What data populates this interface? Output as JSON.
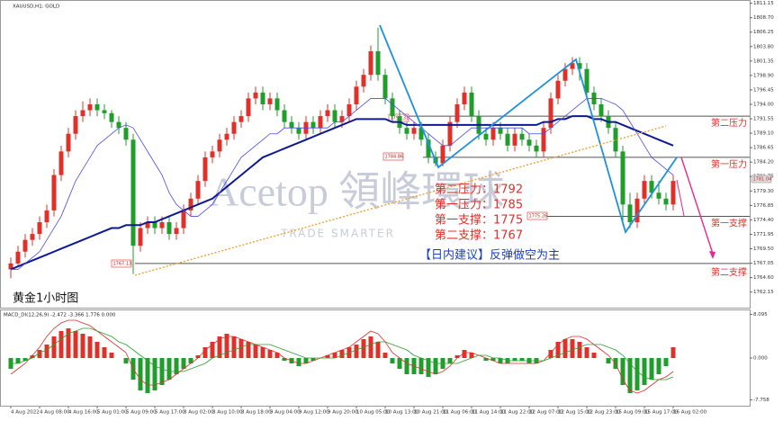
{
  "chart_data": {
    "type": "candlestick",
    "title": "XAUUSD,H1: GOLD",
    "subtitle": "黄金1小时图",
    "up_color": "#e0302a",
    "down_color": "#1f9e2c",
    "categories": [
      "4 Aug 2022",
      null,
      null,
      null,
      "4 Aug 08:00",
      null,
      null,
      null,
      "4 Aug 16:00",
      null,
      null,
      null,
      "5 Aug 01:00",
      null,
      null,
      null,
      "5 Aug 09:00",
      null,
      null,
      null,
      "5 Aug 17:00",
      null,
      null,
      null,
      "8 Aug 02:00",
      null,
      null,
      null,
      "8 Aug 10:00",
      null,
      null,
      null,
      "8 Aug 18:00",
      null,
      null,
      null,
      "9 Aug 04:00",
      null,
      null,
      null,
      "9 Aug 12:00",
      null,
      null,
      null,
      "9 Aug 20:00",
      null,
      null,
      null,
      "10 Aug 05:00",
      null,
      null,
      null,
      "10 Aug 13:00",
      null,
      null,
      null,
      "10 Aug 21:00",
      null,
      null,
      null,
      "11 Aug 06:00",
      null,
      null,
      null,
      "11 Aug 14:00",
      null,
      null,
      null,
      "11 Aug 22:00",
      null,
      null,
      null,
      "12 Aug 07:00",
      null,
      null,
      null,
      "12 Aug 15:00",
      null,
      null,
      null,
      "12 Aug 23:00",
      null,
      null,
      null,
      "15 Aug 09:00",
      null,
      null,
      null,
      "15 Aug 17:00",
      null,
      null,
      null,
      "16 Aug 02:00"
    ],
    "ohlc": [
      [
        1766,
        1768,
        1764.5,
        1767
      ],
      [
        1767,
        1770,
        1766.5,
        1769
      ],
      [
        1769,
        1772,
        1768,
        1771
      ],
      [
        1771,
        1773,
        1770,
        1772
      ],
      [
        1772,
        1775,
        1771,
        1774
      ],
      [
        1774,
        1777,
        1773,
        1776
      ],
      [
        1776,
        1783,
        1775,
        1782
      ],
      [
        1782,
        1787,
        1781,
        1786
      ],
      [
        1786,
        1790,
        1785,
        1789
      ],
      [
        1789,
        1793,
        1788,
        1792
      ],
      [
        1792,
        1794.5,
        1791,
        1793
      ],
      [
        1793,
        1795,
        1792,
        1794
      ],
      [
        1794,
        1795,
        1792,
        1793
      ],
      [
        1793,
        1794,
        1791.5,
        1792.5
      ],
      [
        1792.5,
        1793,
        1790,
        1791
      ],
      [
        1791,
        1792,
        1789,
        1790
      ],
      [
        1790,
        1791,
        1787,
        1788
      ],
      [
        1788,
        1789,
        1765.2,
        1770
      ],
      [
        1770,
        1774,
        1769,
        1773
      ],
      [
        1773,
        1775,
        1772,
        1774
      ],
      [
        1774,
        1775,
        1772,
        1773
      ],
      [
        1773,
        1775,
        1772,
        1774
      ],
      [
        1774,
        1775,
        1771,
        1772
      ],
      [
        1772,
        1774,
        1771,
        1773
      ],
      [
        1773,
        1777,
        1772,
        1776
      ],
      [
        1776,
        1779,
        1775,
        1778
      ],
      [
        1778,
        1782,
        1777,
        1781
      ],
      [
        1781,
        1786,
        1780,
        1785
      ],
      [
        1785,
        1787,
        1784,
        1786
      ],
      [
        1786,
        1789,
        1785,
        1788
      ],
      [
        1788,
        1790,
        1787,
        1789
      ],
      [
        1789,
        1792,
        1788,
        1791
      ],
      [
        1791,
        1793,
        1790,
        1792
      ],
      [
        1792,
        1796,
        1791,
        1795
      ],
      [
        1795,
        1797,
        1794,
        1796
      ],
      [
        1796,
        1797,
        1793,
        1794
      ],
      [
        1794,
        1796,
        1793,
        1795
      ],
      [
        1795,
        1796,
        1792,
        1793
      ],
      [
        1793,
        1794,
        1790,
        1791
      ],
      [
        1791,
        1792,
        1789,
        1790
      ],
      [
        1790,
        1791,
        1788,
        1789
      ],
      [
        1789,
        1792,
        1788,
        1791
      ],
      [
        1791,
        1792,
        1789,
        1790
      ],
      [
        1790,
        1793,
        1789,
        1792
      ],
      [
        1792,
        1794,
        1791,
        1793
      ],
      [
        1793,
        1794,
        1790,
        1791
      ],
      [
        1791,
        1793,
        1790,
        1792
      ],
      [
        1792,
        1795,
        1791,
        1794
      ],
      [
        1794,
        1798,
        1793,
        1797
      ],
      [
        1797,
        1800,
        1796,
        1799
      ],
      [
        1799,
        1804,
        1798,
        1803
      ],
      [
        1803,
        1807,
        1798,
        1799
      ],
      [
        1799,
        1800,
        1794,
        1795
      ],
      [
        1795,
        1796,
        1791,
        1792
      ],
      [
        1792,
        1793,
        1789,
        1790
      ],
      [
        1790,
        1791,
        1788,
        1789
      ],
      [
        1789,
        1791,
        1788,
        1790
      ],
      [
        1790,
        1791,
        1787,
        1788
      ],
      [
        1788,
        1789,
        1784,
        1785
      ],
      [
        1785,
        1786,
        1783.5,
        1784
      ],
      [
        1784,
        1788,
        1783.5,
        1787
      ],
      [
        1787,
        1792,
        1786,
        1791
      ],
      [
        1791,
        1795,
        1790,
        1794
      ],
      [
        1794,
        1797,
        1793,
        1796
      ],
      [
        1796,
        1797,
        1791,
        1792
      ],
      [
        1792,
        1793,
        1788,
        1789
      ],
      [
        1789,
        1790,
        1787,
        1788
      ],
      [
        1788,
        1791,
        1787,
        1790
      ],
      [
        1790,
        1791,
        1788,
        1789
      ],
      [
        1789,
        1790,
        1786,
        1787
      ],
      [
        1787,
        1790,
        1786,
        1789
      ],
      [
        1789,
        1790,
        1787,
        1788
      ],
      [
        1788,
        1789,
        1786,
        1787
      ],
      [
        1787,
        1788,
        1785,
        1786
      ],
      [
        1786,
        1791,
        1785,
        1790
      ],
      [
        1790,
        1796,
        1789,
        1795
      ],
      [
        1795,
        1799,
        1794,
        1798
      ],
      [
        1798,
        1801,
        1797,
        1800
      ],
      [
        1800,
        1802,
        1799,
        1801
      ],
      [
        1801,
        1802,
        1798,
        1800
      ],
      [
        1800,
        1801,
        1795,
        1796
      ],
      [
        1796,
        1797,
        1793,
        1794
      ],
      [
        1794,
        1795,
        1791,
        1792
      ],
      [
        1792,
        1793,
        1789,
        1790
      ],
      [
        1790,
        1791,
        1785,
        1786
      ],
      [
        1786,
        1787,
        1773.5,
        1777
      ],
      [
        1777,
        1779,
        1773,
        1774
      ],
      [
        1774,
        1779,
        1773,
        1778
      ],
      [
        1778,
        1782,
        1777,
        1781
      ],
      [
        1781,
        1782,
        1778,
        1779
      ],
      [
        1779,
        1781,
        1777,
        1778
      ],
      [
        1778,
        1779,
        1776,
        1777
      ],
      [
        1777,
        1782,
        1776,
        1781
      ]
    ],
    "series": [
      {
        "color": "#0d1a8f",
        "width": 2,
        "values": [
          1766,
          1766.5,
          1767,
          1767.5,
          1768,
          1768.5,
          1769,
          1769.5,
          1770,
          1770.5,
          1771,
          1771.5,
          1772,
          1772.5,
          1773,
          1773,
          1773.5,
          1773.5,
          1773.5,
          1774,
          1774,
          1774.5,
          1775,
          1775.5,
          1776,
          1776.5,
          1777,
          1777.5,
          1778,
          1779,
          1780,
          1781,
          1782,
          1783,
          1784,
          1785,
          1785.5,
          1786,
          1786.5,
          1787,
          1787.5,
          1788,
          1788.5,
          1789,
          1789.5,
          1790,
          1790.5,
          1791,
          1791.5,
          1791.5,
          1791.5,
          1791.5,
          1791.5,
          1791,
          1791,
          1790.5,
          1790.5,
          1790.5,
          1790.5,
          1790.5,
          1790.5,
          1790.5,
          1790.5,
          1790.5,
          1790.5,
          1790.5,
          1790.5,
          1790.5,
          1790.5,
          1790.5,
          1790.5,
          1790.5,
          1790.5,
          1790.5,
          1791,
          1791,
          1791.5,
          1791.5,
          1792,
          1792,
          1792,
          1791.5,
          1791.5,
          1791,
          1791,
          1790.5,
          1790,
          1789.5,
          1789,
          1788.5,
          1788,
          1787.5,
          1787
        ]
      },
      {
        "color": "#4a4ae6",
        "width": 0.8,
        "values": [
          1766,
          1766,
          1767,
          1768,
          1769,
          1771,
          1773,
          1775,
          1778,
          1781,
          1783,
          1785,
          1787,
          1788,
          1789,
          1790,
          1790.5,
          1790,
          1788,
          1786,
          1784,
          1782,
          1779,
          1777,
          1776,
          1775,
          1775,
          1776,
          1777,
          1779,
          1781,
          1783,
          1785,
          1786,
          1787,
          1788,
          1789,
          1789,
          1790,
          1790,
          1790,
          1790,
          1790,
          1790,
          1790,
          1791,
          1791,
          1792,
          1793,
          1794,
          1795,
          1795,
          1795,
          1794,
          1793,
          1792,
          1791,
          1790,
          1789,
          1788,
          1787,
          1787,
          1788,
          1789,
          1790,
          1790,
          1790,
          1790,
          1790,
          1790,
          1790,
          1790,
          1789,
          1789,
          1789,
          1790,
          1791,
          1792,
          1793,
          1794,
          1795,
          1795,
          1795,
          1794.5,
          1794,
          1793,
          1791,
          1789,
          1787,
          1785,
          1784,
          1783,
          1782
        ]
      }
    ],
    "ylim": [
      1759.5,
      1811.7
    ],
    "yticks": [
      1762.15,
      {
        "value": 1764.6,
        "label": "1764.60"
      },
      1767.05,
      {
        "value": 1769.5,
        "label": "1769.50"
      },
      1771.95,
      {
        "value": 1774.4,
        "label": "1774.40"
      },
      1776.85,
      {
        "value": 1779.3,
        "label": "1779.30"
      },
      1781.75,
      {
        "value": 1784.2,
        "label": "1784.20"
      },
      1786.65,
      {
        "value": 1789.1,
        "label": "1789.10"
      },
      1791.55,
      {
        "value": 1794,
        "label": "1794.00"
      },
      1796.45,
      {
        "value": 1798.9,
        "label": "1798.90"
      },
      1801.35,
      {
        "value": 1803.8,
        "label": "1803.80"
      },
      1806.25,
      {
        "value": 1808.7,
        "label": "1808.70"
      },
      1811.15
    ],
    "levels": [
      {
        "label": "第二压力",
        "value": 1792
      },
      {
        "label": "第一压力",
        "value": 1785
      },
      {
        "label": "第一支撑",
        "value": 1775
      },
      {
        "label": "第二支撑",
        "value": 1767
      }
    ],
    "annotations": [
      "1791.31",
      "1784.86",
      "1775.26",
      "1767.13",
      "1781.04"
    ],
    "notes": [
      "第二压力：1792",
      "第一压力：1785",
      "第一支撑：1775",
      "第二支撑：1767"
    ],
    "advice": "【日内建议】反弹做空为主",
    "watermark": [
      "Acetop 領峰環球",
      "TRADE SMARTER"
    ],
    "indicator": {
      "title": "MACD_DI(12,26,9) -2.472 -3.366 1.776 0.000",
      "ylim": [
        -9,
        9
      ],
      "yticks": [
        8.095,
        {
          "value": 0,
          "label": "0.000"
        },
        -7.758
      ],
      "histogram": [
        -2,
        -1,
        -0.5,
        0.5,
        1.5,
        2.5,
        4,
        5,
        5.5,
        5,
        4.5,
        4,
        3,
        2,
        1,
        0,
        -1,
        -4,
        -6,
        -6.5,
        -6,
        -5,
        -4,
        -3,
        -2,
        -1,
        0.5,
        2,
        3,
        4,
        4.5,
        4,
        3.5,
        3,
        2.5,
        2,
        1.5,
        1,
        -0.5,
        -1,
        -1.5,
        -1,
        -0.5,
        0,
        0.5,
        1,
        1.5,
        2,
        2.5,
        3.5,
        4,
        3,
        1,
        -1,
        -2,
        -3,
        -3,
        -3,
        -3.5,
        -3,
        -2,
        -1,
        0.5,
        1.5,
        1,
        0,
        -0.5,
        -0.5,
        -1,
        -1,
        -0.5,
        -0.5,
        -1,
        -1,
        0,
        1.5,
        3,
        3.5,
        3.5,
        3,
        2,
        1,
        0,
        -1,
        -2,
        -5,
        -6.5,
        -6,
        -5,
        -4,
        -3,
        -1.5,
        2
      ],
      "lines": [
        {
          "color": "#e0302a",
          "values": [
            -3,
            -2,
            -1,
            0.5,
            2,
            4,
            5.5,
            6.5,
            7,
            7,
            6.5,
            6,
            5,
            4,
            3,
            2,
            1,
            -2,
            -4,
            -5,
            -5,
            -4.5,
            -4,
            -3,
            -2,
            -1,
            0,
            1.5,
            2.5,
            3.5,
            4,
            4,
            3.5,
            3,
            2.5,
            2,
            1.5,
            1,
            0,
            -0.5,
            -1,
            -1,
            -0.5,
            0,
            0.5,
            1,
            1.5,
            2,
            3,
            4,
            5,
            4.5,
            3,
            1,
            0,
            -1,
            -1.5,
            -2,
            -2.5,
            -3,
            -2.5,
            -1.5,
            0,
            1,
            1,
            0.5,
            0,
            -0.5,
            -1,
            -1,
            -1,
            -1,
            -1,
            -1,
            -0.5,
            1,
            2.5,
            3.5,
            4,
            4,
            3.5,
            2.5,
            1.5,
            0.5,
            -1,
            -4,
            -6,
            -6.5,
            -6,
            -5,
            -4,
            -3.5,
            -2.5
          ]
        },
        {
          "color": "#2aa02a",
          "values": [
            -1,
            -1,
            -0.5,
            0,
            1,
            1.5,
            2.5,
            3.5,
            4.5,
            5,
            5.5,
            5.5,
            5,
            4.5,
            4,
            3,
            2.5,
            1.5,
            0.5,
            -0.5,
            -1.5,
            -2,
            -2.5,
            -2.5,
            -2.5,
            -2,
            -1.5,
            -1,
            0,
            0.5,
            1,
            1.5,
            2,
            2.5,
            2.5,
            2.5,
            2.5,
            2,
            1.5,
            1,
            0.5,
            0,
            0,
            0,
            0,
            0,
            0.5,
            1,
            1.5,
            2,
            2.5,
            3,
            3,
            2.5,
            2,
            1.5,
            0.5,
            0,
            -0.5,
            -1,
            -1,
            -1,
            -1,
            -0.5,
            0,
            0.5,
            0.5,
            0,
            0,
            -0.5,
            -0.5,
            -0.5,
            -0.5,
            -0.5,
            -0.5,
            0,
            0.5,
            1,
            1.5,
            2,
            2.5,
            2.5,
            2.5,
            2,
            1.5,
            0.5,
            -1,
            -2.5,
            -3.5,
            -4,
            -4,
            -4,
            -3.5
          ]
        }
      ]
    }
  }
}
